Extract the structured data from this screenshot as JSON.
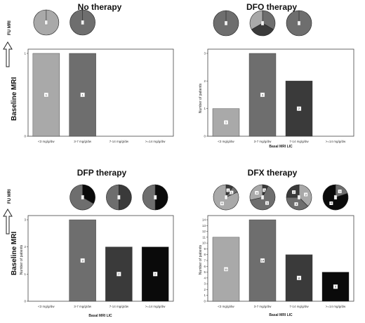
{
  "row_label": "Baseline MRI",
  "fu_label": "FU MRI",
  "chart_data": [
    {
      "type": "bar",
      "title": "No therapy",
      "categories": [
        "<3 mg/g/dw",
        "3-7 mg/g/dw",
        "7-14 mg/g/dw",
        ">=14 mg/g/dw"
      ],
      "values": [
        1,
        1,
        0,
        0
      ],
      "data_labels": [
        "1",
        "1",
        "",
        ""
      ],
      "ylabel": "",
      "xlabel": "",
      "ylim": [
        0,
        1
      ],
      "yticks": [
        "0",
        "1"
      ],
      "colors": [
        "#a9a9a9",
        "#6e6e6e",
        "#3a3a3a",
        "#0a0a0a"
      ],
      "pies": [
        {
          "category": 0,
          "slices": [
            {
              "value": 1,
              "color": "#a9a9a9",
              "label": ""
            }
          ]
        },
        {
          "category": 1,
          "slices": [
            {
              "value": 1,
              "color": "#6e6e6e",
              "label": ""
            }
          ]
        }
      ]
    },
    {
      "type": "bar",
      "title": "DFO therapy",
      "categories": [
        "<3 mg/g/dw",
        "3-7 mg/g/dw",
        "7-14 mg/g/dw",
        ">=14 mg/g/dw"
      ],
      "values": [
        1,
        3,
        2,
        0
      ],
      "data_labels": [
        "1",
        "3",
        "2",
        ""
      ],
      "ylabel": "Number of patients",
      "xlabel": "Basal MRI LIC",
      "ylim": [
        0,
        3
      ],
      "yticks": [
        "0",
        "1",
        "2",
        "3"
      ],
      "colors": [
        "#a9a9a9",
        "#6e6e6e",
        "#3a3a3a",
        "#0a0a0a"
      ],
      "pies": [
        {
          "category": 0,
          "slices": [
            {
              "value": 1,
              "color": "#6e6e6e",
              "label": ""
            }
          ]
        },
        {
          "category": 1,
          "slices": [
            {
              "value": 1,
              "color": "#6e6e6e",
              "label": ""
            },
            {
              "value": 1,
              "color": "#3a3a3a",
              "label": ""
            },
            {
              "value": 1,
              "color": "#a9a9a9",
              "label": ""
            }
          ]
        },
        {
          "category": 2,
          "slices": [
            {
              "value": 1,
              "color": "#6e6e6e",
              "label": ""
            }
          ]
        }
      ]
    },
    {
      "type": "bar",
      "title": "DFP therapy",
      "categories": [
        "<3 mg/g/dw",
        "3-7 mg/g/dw",
        "7-14 mg/g/dw",
        ">=14 mg/g/dw"
      ],
      "values": [
        0,
        3,
        2,
        2
      ],
      "data_labels": [
        "",
        "3",
        "2",
        "2"
      ],
      "ylabel": "Number of patients",
      "xlabel": "Basal MRI LIC",
      "ylim": [
        0,
        3
      ],
      "yticks": [
        "0",
        "1",
        "2",
        "3"
      ],
      "colors": [
        "#a9a9a9",
        "#6e6e6e",
        "#3a3a3a",
        "#0a0a0a"
      ],
      "pies": [
        {
          "category": 1,
          "slices": [
            {
              "value": 1,
              "color": "#0a0a0a",
              "label": ""
            },
            {
              "value": 2,
              "color": "#6e6e6e",
              "label": ""
            }
          ]
        },
        {
          "category": 2,
          "slices": [
            {
              "value": 1,
              "color": "#3a3a3a",
              "label": ""
            },
            {
              "value": 1,
              "color": "#6e6e6e",
              "label": ""
            }
          ]
        },
        {
          "category": 3,
          "slices": [
            {
              "value": 1,
              "color": "#0a0a0a",
              "label": ""
            },
            {
              "value": 1,
              "color": "#6e6e6e",
              "label": ""
            }
          ]
        }
      ]
    },
    {
      "type": "bar",
      "title": "DFX therapy",
      "categories": [
        "<3 mg/g/dw",
        "3-7 mg/g/dw",
        "7-14 mg/g/dw",
        ">=14 mg/g/dw"
      ],
      "values": [
        11,
        14,
        8,
        5
      ],
      "data_labels": [
        "11",
        "14",
        "8",
        "5"
      ],
      "ylabel": "Number of patients",
      "xlabel": "Basal MRI LIC",
      "ylim": [
        0,
        14
      ],
      "yticks": [
        "0",
        "1",
        "2",
        "3",
        "4",
        "5",
        "6",
        "7",
        "8",
        "9",
        "10",
        "11",
        "12",
        "13",
        "14"
      ],
      "colors": [
        "#a9a9a9",
        "#6e6e6e",
        "#3a3a3a",
        "#0a0a0a"
      ],
      "pies": [
        {
          "category": 0,
          "slices": [
            {
              "value": 1,
              "color": "#3a3a3a",
              "label": "1"
            },
            {
              "value": 1,
              "color": "#6e6e6e",
              "label": "1"
            },
            {
              "value": 9,
              "color": "#a9a9a9",
              "label": "9"
            }
          ]
        },
        {
          "category": 1,
          "slices": [
            {
              "value": 1,
              "color": "#3a3a3a",
              "label": "1"
            },
            {
              "value": 9,
              "color": "#6e6e6e",
              "label": "9"
            },
            {
              "value": 4,
              "color": "#a9a9a9",
              "label": "4"
            }
          ]
        },
        {
          "category": 2,
          "slices": [
            {
              "value": 3,
              "color": "#a9a9a9",
              "label": "3"
            },
            {
              "value": 3,
              "color": "#6e6e6e",
              "label": "3"
            },
            {
              "value": 2,
              "color": "#3a3a3a",
              "label": "2"
            }
          ]
        },
        {
          "category": 3,
          "slices": [
            {
              "value": 1,
              "color": "#6e6e6e",
              "label": "1"
            },
            {
              "value": 4,
              "color": "#0a0a0a",
              "label": "4"
            }
          ]
        }
      ]
    }
  ]
}
